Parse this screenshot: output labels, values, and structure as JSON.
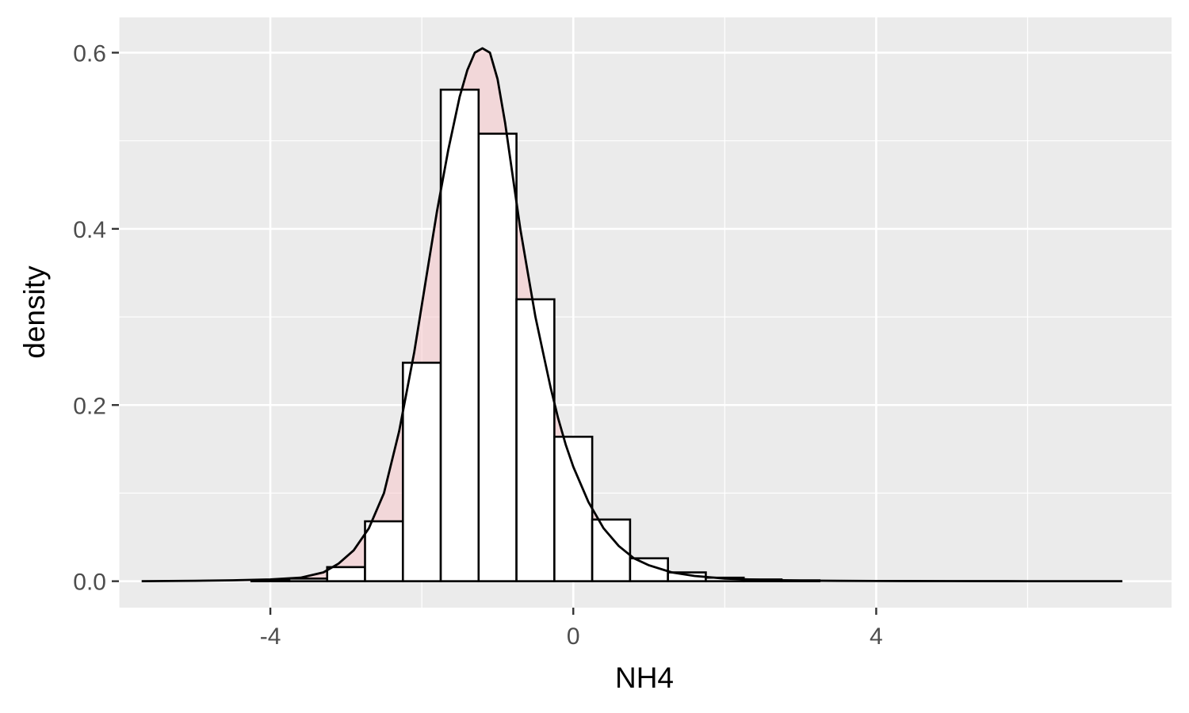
{
  "chart_data": {
    "type": "histogram",
    "title": "",
    "xlabel": "NH4",
    "ylabel": "density",
    "xlim": [
      -6.0,
      7.9
    ],
    "ylim": [
      -0.03,
      0.64
    ],
    "x_ticks": [
      {
        "value": -4,
        "label": "-4"
      },
      {
        "value": 0,
        "label": "0"
      },
      {
        "value": 4,
        "label": "4"
      }
    ],
    "y_ticks": [
      {
        "value": 0.0,
        "label": "0.0"
      },
      {
        "value": 0.2,
        "label": "0.2"
      },
      {
        "value": 0.4,
        "label": "0.4"
      },
      {
        "value": 0.6,
        "label": "0.6"
      }
    ],
    "grid": true,
    "colors": {
      "panel_background": "#ebebeb",
      "grid": "#ffffff",
      "bar_outline": "#000000",
      "density_fill": "#f9c4c8",
      "density_line": "#000000"
    },
    "histogram": {
      "bin_width": 0.5,
      "bins": [
        {
          "x0": -4.25,
          "density": 0.001
        },
        {
          "x0": -3.75,
          "density": 0.003
        },
        {
          "x0": -3.25,
          "density": 0.016
        },
        {
          "x0": -2.75,
          "density": 0.068
        },
        {
          "x0": -2.25,
          "density": 0.248
        },
        {
          "x0": -1.75,
          "density": 0.558
        },
        {
          "x0": -1.25,
          "density": 0.508
        },
        {
          "x0": -0.75,
          "density": 0.32
        },
        {
          "x0": -0.25,
          "density": 0.164
        },
        {
          "x0": 0.25,
          "density": 0.07
        },
        {
          "x0": 0.75,
          "density": 0.026
        },
        {
          "x0": 1.25,
          "density": 0.01
        },
        {
          "x0": 1.75,
          "density": 0.004
        },
        {
          "x0": 2.25,
          "density": 0.002
        },
        {
          "x0": 2.75,
          "density": 0.001
        }
      ]
    },
    "density": {
      "x": [
        -5.7,
        -5.0,
        -4.5,
        -4.0,
        -3.6,
        -3.3,
        -3.1,
        -2.9,
        -2.7,
        -2.5,
        -2.3,
        -2.1,
        -1.95,
        -1.8,
        -1.65,
        -1.5,
        -1.4,
        -1.3,
        -1.2,
        -1.1,
        -1.0,
        -0.9,
        -0.8,
        -0.7,
        -0.6,
        -0.5,
        -0.4,
        -0.3,
        -0.2,
        -0.1,
        0.0,
        0.2,
        0.4,
        0.6,
        0.8,
        1.0,
        1.3,
        1.6,
        2.0,
        2.5,
        3.0,
        3.5,
        4.0,
        5.0,
        6.0,
        7.25
      ],
      "y": [
        0.0,
        0.0005,
        0.001,
        0.002,
        0.004,
        0.01,
        0.02,
        0.035,
        0.06,
        0.1,
        0.17,
        0.26,
        0.34,
        0.42,
        0.49,
        0.55,
        0.58,
        0.6,
        0.605,
        0.6,
        0.57,
        0.52,
        0.46,
        0.4,
        0.35,
        0.3,
        0.26,
        0.22,
        0.185,
        0.155,
        0.13,
        0.09,
        0.06,
        0.04,
        0.026,
        0.018,
        0.01,
        0.006,
        0.003,
        0.0015,
        0.0007,
        0.0004,
        0.0002,
        0.0001,
        0.0,
        0.0
      ]
    }
  }
}
